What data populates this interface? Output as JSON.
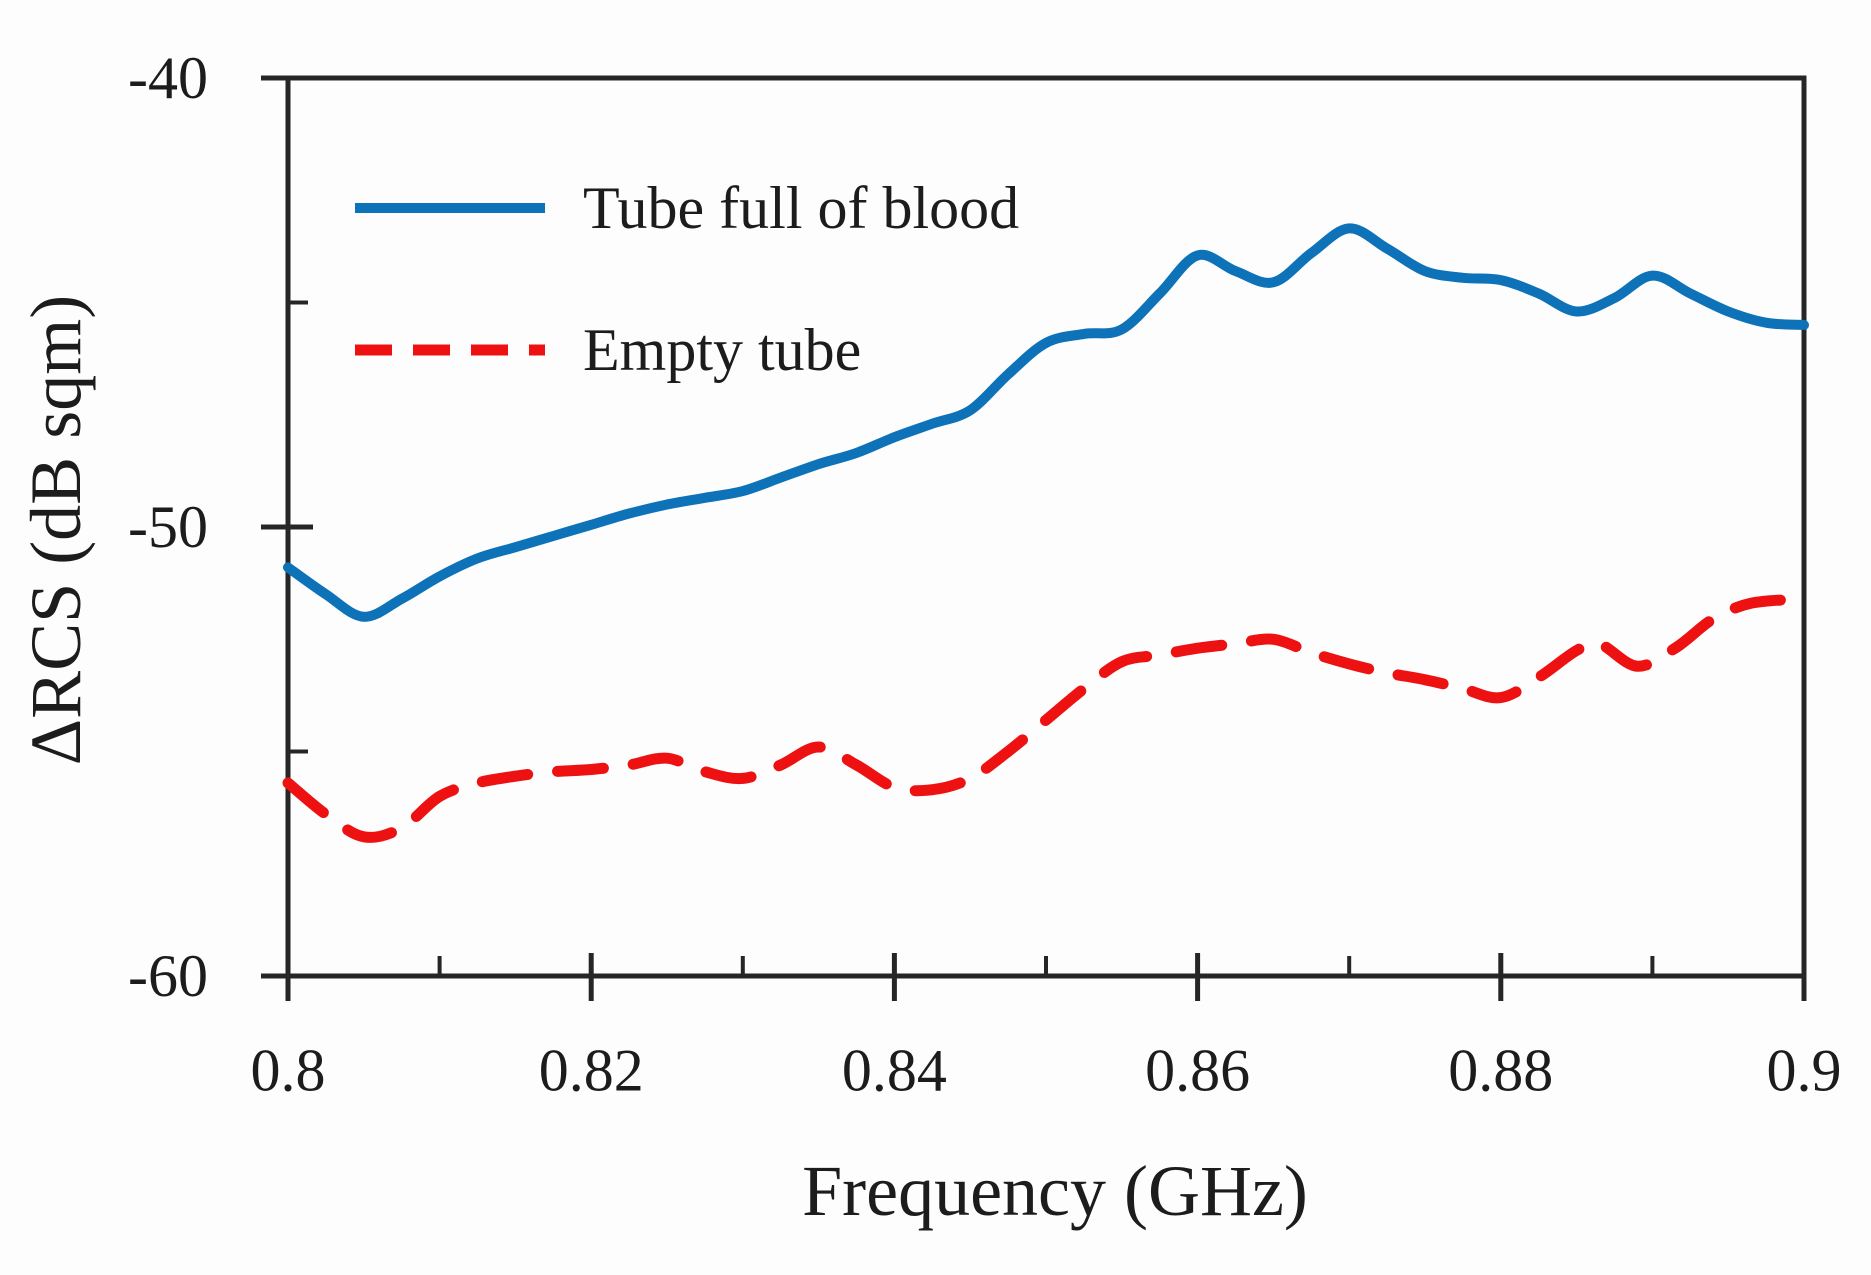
{
  "chart_data": {
    "type": "line",
    "title": "",
    "xlabel": "Frequency (GHz)",
    "ylabel": "ΔRCS (dB sqm)",
    "xlim": [
      0.8,
      0.9
    ],
    "ylim": [
      -60,
      -40
    ],
    "grid": false,
    "legend_position": "inside-top-left",
    "x_ticks_major": [
      0.8,
      0.82,
      0.84,
      0.86,
      0.88,
      0.9
    ],
    "x_tick_labels": [
      "0.8",
      "0.82",
      "0.84",
      "0.86",
      "0.88",
      "0.9"
    ],
    "x_ticks_minor": [
      0.81,
      0.83,
      0.85,
      0.87,
      0.89
    ],
    "y_ticks_major": [
      -40,
      -50,
      -60
    ],
    "y_tick_labels": [
      "-40",
      "-50",
      "-60"
    ],
    "y_ticks_minor": [
      -45,
      -55
    ],
    "axis_color": "#262626",
    "series": [
      {
        "name": "Tube full of blood",
        "color": "#0d72b8",
        "style": "solid",
        "x": [
          0.8,
          0.8025,
          0.805,
          0.8075,
          0.81,
          0.8125,
          0.815,
          0.8175,
          0.82,
          0.8225,
          0.825,
          0.8275,
          0.83,
          0.8325,
          0.835,
          0.8375,
          0.84,
          0.8425,
          0.845,
          0.8475,
          0.85,
          0.8525,
          0.855,
          0.8575,
          0.86,
          0.8625,
          0.865,
          0.8675,
          0.87,
          0.8725,
          0.875,
          0.8775,
          0.88,
          0.8825,
          0.885,
          0.8875,
          0.89,
          0.8925,
          0.895,
          0.8975,
          0.9
        ],
        "y": [
          -50.9,
          -51.5,
          -52.0,
          -51.6,
          -51.1,
          -50.7,
          -50.45,
          -50.2,
          -49.95,
          -49.7,
          -49.5,
          -49.35,
          -49.2,
          -48.9,
          -48.6,
          -48.35,
          -48.0,
          -47.7,
          -47.4,
          -46.6,
          -45.9,
          -45.7,
          -45.6,
          -44.8,
          -43.95,
          -44.3,
          -44.55,
          -43.9,
          -43.35,
          -43.8,
          -44.3,
          -44.45,
          -44.5,
          -44.8,
          -45.2,
          -44.9,
          -44.4,
          -44.8,
          -45.2,
          -45.45,
          -45.5
        ]
      },
      {
        "name": "Empty tube",
        "color": "#ee1111",
        "style": "dashed",
        "x": [
          0.8,
          0.8025,
          0.805,
          0.8075,
          0.81,
          0.8125,
          0.815,
          0.8175,
          0.82,
          0.8225,
          0.825,
          0.8275,
          0.83,
          0.8325,
          0.835,
          0.8375,
          0.84,
          0.8425,
          0.845,
          0.8475,
          0.85,
          0.8525,
          0.855,
          0.8575,
          0.86,
          0.8625,
          0.865,
          0.8675,
          0.87,
          0.8725,
          0.875,
          0.8775,
          0.88,
          0.8825,
          0.885,
          0.8865,
          0.889,
          0.8915,
          0.894,
          0.8965,
          0.9
        ],
        "y": [
          -55.7,
          -56.4,
          -56.9,
          -56.7,
          -56.0,
          -55.7,
          -55.55,
          -55.45,
          -55.4,
          -55.3,
          -55.15,
          -55.45,
          -55.6,
          -55.3,
          -54.9,
          -55.3,
          -55.8,
          -55.85,
          -55.6,
          -55.0,
          -54.3,
          -53.6,
          -53.0,
          -52.85,
          -52.7,
          -52.6,
          -52.5,
          -52.8,
          -53.05,
          -53.25,
          -53.4,
          -53.6,
          -53.8,
          -53.35,
          -52.75,
          -52.6,
          -53.1,
          -52.7,
          -52.05,
          -51.7,
          -51.6
        ]
      }
    ]
  }
}
